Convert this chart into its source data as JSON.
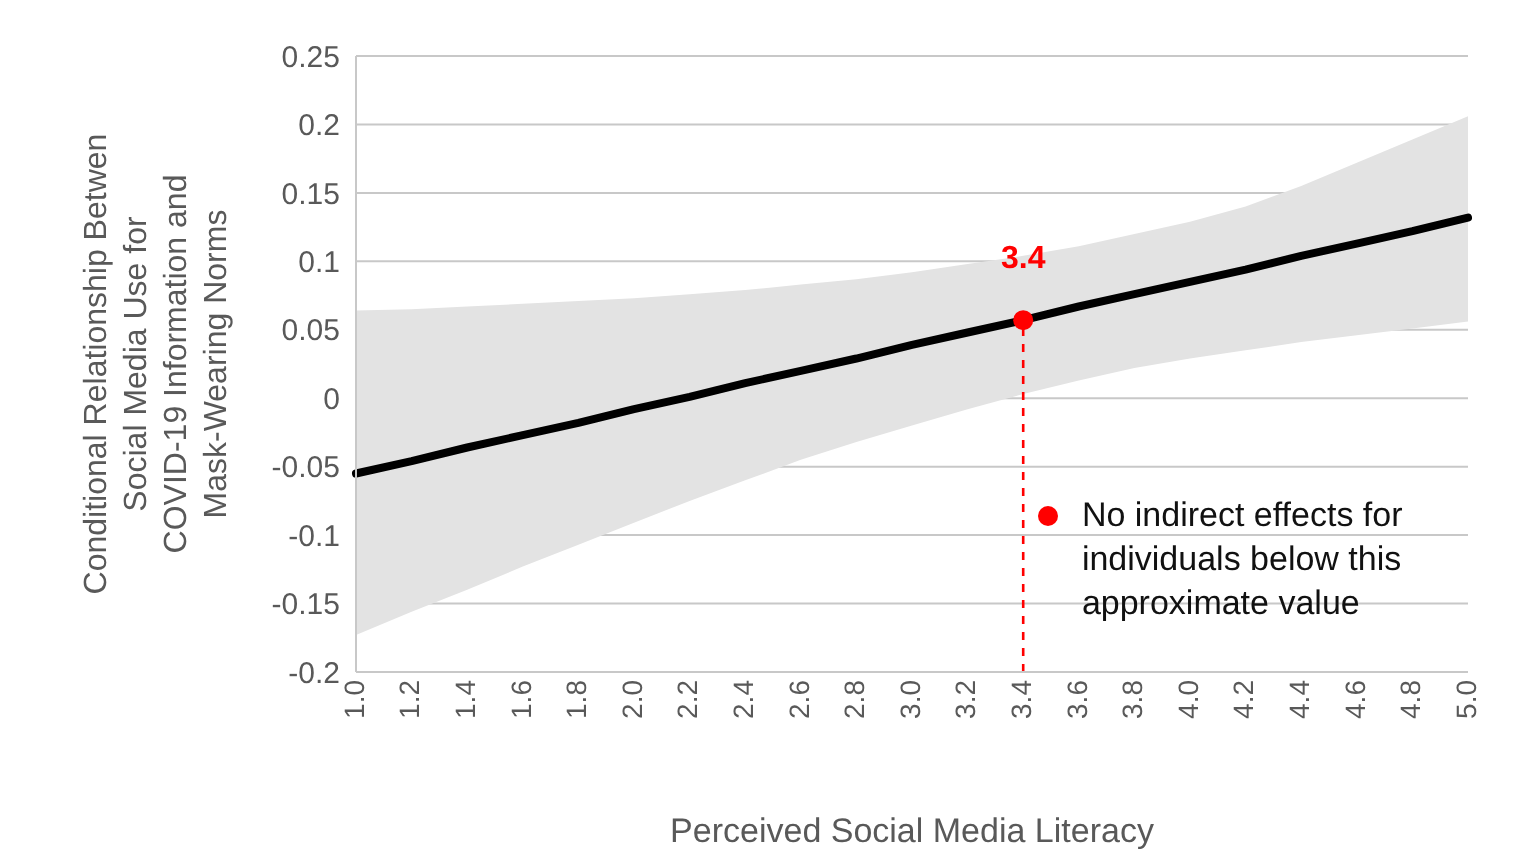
{
  "chart_data": {
    "type": "line",
    "xlabel": "Perceived Social Media Literacy",
    "ylabel": "Conditional Relationship Betwen\nSocial Media Use for\nCOVID-19 Information and\nMask-Wearing Norms",
    "categories": [
      "1.0",
      "1.2",
      "1.4",
      "1.6",
      "1.8",
      "2.0",
      "2.2",
      "2.4",
      "2.6",
      "2.8",
      "3.0",
      "3.2",
      "3.4",
      "3.6",
      "3.8",
      "4.0",
      "4.2",
      "4.4",
      "4.6",
      "4.8",
      "5.0"
    ],
    "series": [
      {
        "color": "#000000",
        "values": [
          -0.055,
          -0.046,
          -0.036,
          -0.027,
          -0.018,
          -0.008,
          0.001,
          0.011,
          0.02,
          0.029,
          0.039,
          0.048,
          0.057,
          0.067,
          0.076,
          0.085,
          0.094,
          0.104,
          0.113,
          0.122,
          0.132
        ],
        "lower": [
          -0.173,
          -0.156,
          -0.14,
          -0.123,
          -0.107,
          -0.091,
          -0.075,
          -0.06,
          -0.045,
          -0.032,
          -0.02,
          -0.008,
          0.003,
          0.013,
          0.022,
          0.029,
          0.035,
          0.041,
          0.046,
          0.051,
          0.056
        ],
        "upper": [
          0.064,
          0.065,
          0.067,
          0.069,
          0.071,
          0.073,
          0.076,
          0.079,
          0.083,
          0.087,
          0.092,
          0.098,
          0.104,
          0.111,
          0.12,
          0.129,
          0.14,
          0.155,
          0.172,
          0.189,
          0.206
        ]
      },
      {
        "type": "scatter",
        "name": "No indirect effects for individuals below this approximate value",
        "color": "#ff0000",
        "x": [
          "3.4"
        ],
        "values": [
          0.057
        ]
      }
    ],
    "legend": "bottom right",
    "ylim": [
      -0.2,
      0.25
    ],
    "yticks": [
      -0.2,
      -0.15,
      -0.1,
      -0.05,
      0,
      0.05,
      0.1,
      0.15,
      0.2,
      0.25
    ],
    "grid": "y",
    "ref_lines": [
      {
        "axis": "x",
        "value": "3.4",
        "color": "#ff0000",
        "line_style": "dashed",
        "label": "3.4"
      }
    ]
  }
}
